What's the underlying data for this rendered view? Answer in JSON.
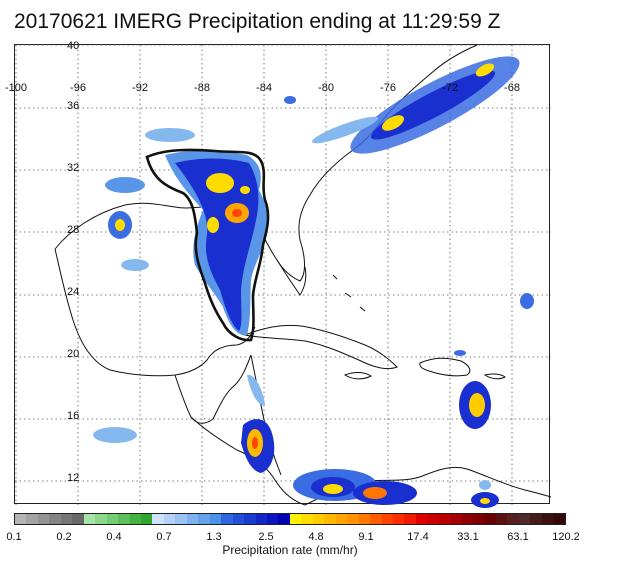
{
  "title": "20170621 IMERG Precipitation ending at 11:29:59 Z",
  "lon_labels": [
    "-100",
    "-96",
    "-92",
    "-88",
    "-84",
    "-80",
    "-76",
    "-72",
    "-68"
  ],
  "lat_labels": [
    "40",
    "36",
    "32",
    "28",
    "24",
    "20",
    "16",
    "12"
  ],
  "colorbar": {
    "ticks": [
      "0.1",
      "0.2",
      "0.4",
      "0.7",
      "1.3",
      "2.5",
      "4.8",
      "9.1",
      "17.4",
      "33.1",
      "63.1",
      "120.2"
    ],
    "label": "Precipitation rate (mm/hr)",
    "colors": [
      "#b4b4b4",
      "#a3a3a3",
      "#949494",
      "#858585",
      "#777777",
      "#686868",
      "#a7e3a7",
      "#8ed88e",
      "#74cc74",
      "#5bbf5b",
      "#43b343",
      "#2ea62e",
      "#cfe2fb",
      "#b4d2f7",
      "#9ac2f3",
      "#7fb2ef",
      "#66a2eb",
      "#4c92e6",
      "#2f66e0",
      "#2450d9",
      "#1a3ad1",
      "#1227c8",
      "#0a15bf",
      "#0203b5",
      "#fff200",
      "#ffdf00",
      "#ffcc00",
      "#ffb800",
      "#ffa500",
      "#ff9200",
      "#ff7700",
      "#ff5c00",
      "#ff4400",
      "#ff2e00",
      "#f21a00",
      "#e00000",
      "#cc0000",
      "#b80000",
      "#a40000",
      "#900000",
      "#7c0000",
      "#680000",
      "#5c1010",
      "#542020",
      "#4c2a2a",
      "#441a1a",
      "#3c1010",
      "#340808"
    ]
  }
}
